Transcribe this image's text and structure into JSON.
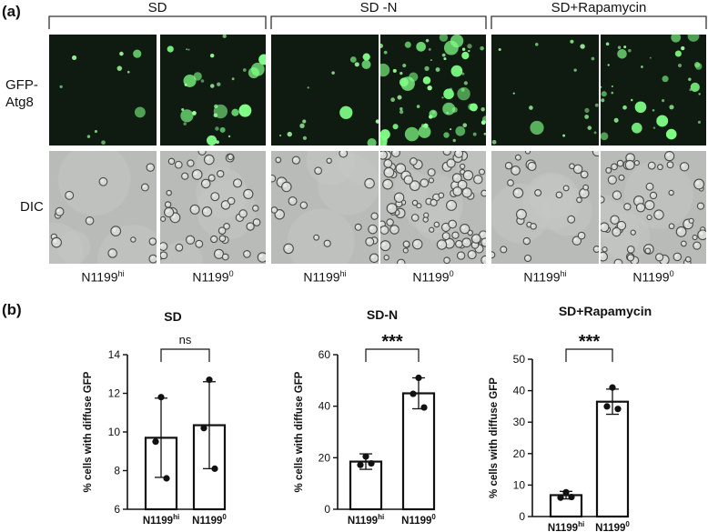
{
  "panel_a": {
    "label": "(a)",
    "conditions": [
      "SD",
      "SD -N",
      "SD+Rapamycin"
    ],
    "row_labels": {
      "gfp_line1": "GFP-",
      "gfp_line2": "Atg8",
      "dic": "DIC"
    },
    "strains": [
      {
        "base": "N1199",
        "sup": "hi"
      },
      {
        "base": "N1199",
        "sup": "0"
      },
      {
        "base": "N1199",
        "sup": "hi"
      },
      {
        "base": "N1199",
        "sup": "0"
      },
      {
        "base": "N1199",
        "sup": "hi"
      },
      {
        "base": "N1199",
        "sup": "0"
      }
    ],
    "colors": {
      "gfp_bg": "#0f1a10",
      "gfp_dot": "#9cff9c",
      "dic_bg": "#b9bbb8"
    }
  },
  "panel_b": {
    "label": "(b)"
  },
  "chart_data": [
    {
      "type": "bar",
      "title": "SD",
      "ylabel": "% cells with diffuse GFP",
      "ylim": [
        6,
        14
      ],
      "yticks": [
        6,
        8,
        10,
        12,
        14
      ],
      "categories": [
        {
          "base": "N1199",
          "sup": "hi"
        },
        {
          "base": "N1199",
          "sup": "0"
        }
      ],
      "values": [
        9.7,
        10.35
      ],
      "errors": [
        2.05,
        2.25
      ],
      "points": [
        [
          11.8,
          9.5,
          7.6
        ],
        [
          12.7,
          10.2,
          8.1
        ]
      ],
      "significance": "ns"
    },
    {
      "type": "bar",
      "title": "SD-N",
      "ylabel": "% cells with diffuse GFP",
      "ylim": [
        0,
        60
      ],
      "yticks": [
        0,
        20,
        40,
        60
      ],
      "categories": [
        {
          "base": "N1199",
          "sup": "hi"
        },
        {
          "base": "N1199",
          "sup": "0"
        }
      ],
      "values": [
        18.5,
        45.0
      ],
      "errors": [
        3.0,
        6.0
      ],
      "points": [
        [
          20.5,
          17.2,
          17.8
        ],
        [
          51.0,
          44.8,
          39.5
        ]
      ],
      "significance": "***"
    },
    {
      "type": "bar",
      "title": "SD+Rapamycin",
      "ylabel": "% cells with diffuse GFP",
      "ylim": [
        0,
        50
      ],
      "yticks": [
        0,
        10,
        20,
        30,
        40,
        50
      ],
      "categories": [
        {
          "base": "N1199",
          "sup": "hi"
        },
        {
          "base": "N1199",
          "sup": "0"
        }
      ],
      "values": [
        6.8,
        36.5
      ],
      "errors": [
        1.2,
        4.0
      ],
      "points": [
        [
          7.7,
          6.0,
          6.2
        ],
        [
          41.0,
          35.0,
          34.2
        ]
      ],
      "significance": "***"
    }
  ]
}
